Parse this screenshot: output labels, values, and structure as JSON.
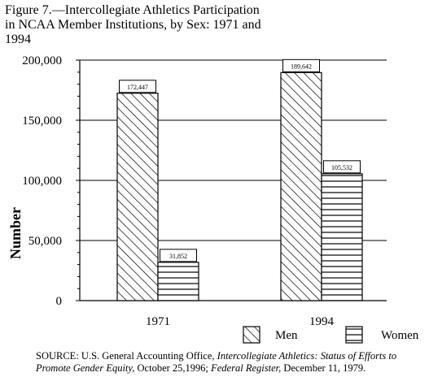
{
  "figure": {
    "title_line1": "Figure 7.—Intercollegiate Athletics Participation",
    "title_line2": "in NCAA Member Institutions, by Sex: 1971 and",
    "title_line3": "1994"
  },
  "source": {
    "prefix": "SOURCE: U.S. General Accounting Office, ",
    "italic1": "Intercollegiate Athletics: Status of Efforts to Promote Gender Equity,",
    "middle": " October 25,1996; ",
    "italic2": "Federal Register,",
    "suffix": " December 11, 1979."
  },
  "chart_data": {
    "type": "bar",
    "categories": [
      "1971",
      "1994"
    ],
    "series": [
      {
        "name": "Men",
        "values": [
          172447,
          189642
        ],
        "labels": [
          "172,447",
          "189,642"
        ],
        "pattern": "diagonal-hatch"
      },
      {
        "name": "Women",
        "values": [
          31852,
          105532
        ],
        "labels": [
          "31,852",
          "105,532"
        ],
        "pattern": "horizontal-lines"
      }
    ],
    "ylabel": "Number",
    "xlabel": "",
    "ylim": [
      0,
      200000
    ],
    "yticks": [
      0,
      50000,
      100000,
      150000,
      200000
    ],
    "ytick_labels": [
      "0",
      "50,000",
      "100,000",
      "150,000",
      "200,000"
    ],
    "grid": "horizontal major",
    "legend_position": "bottom-right"
  }
}
